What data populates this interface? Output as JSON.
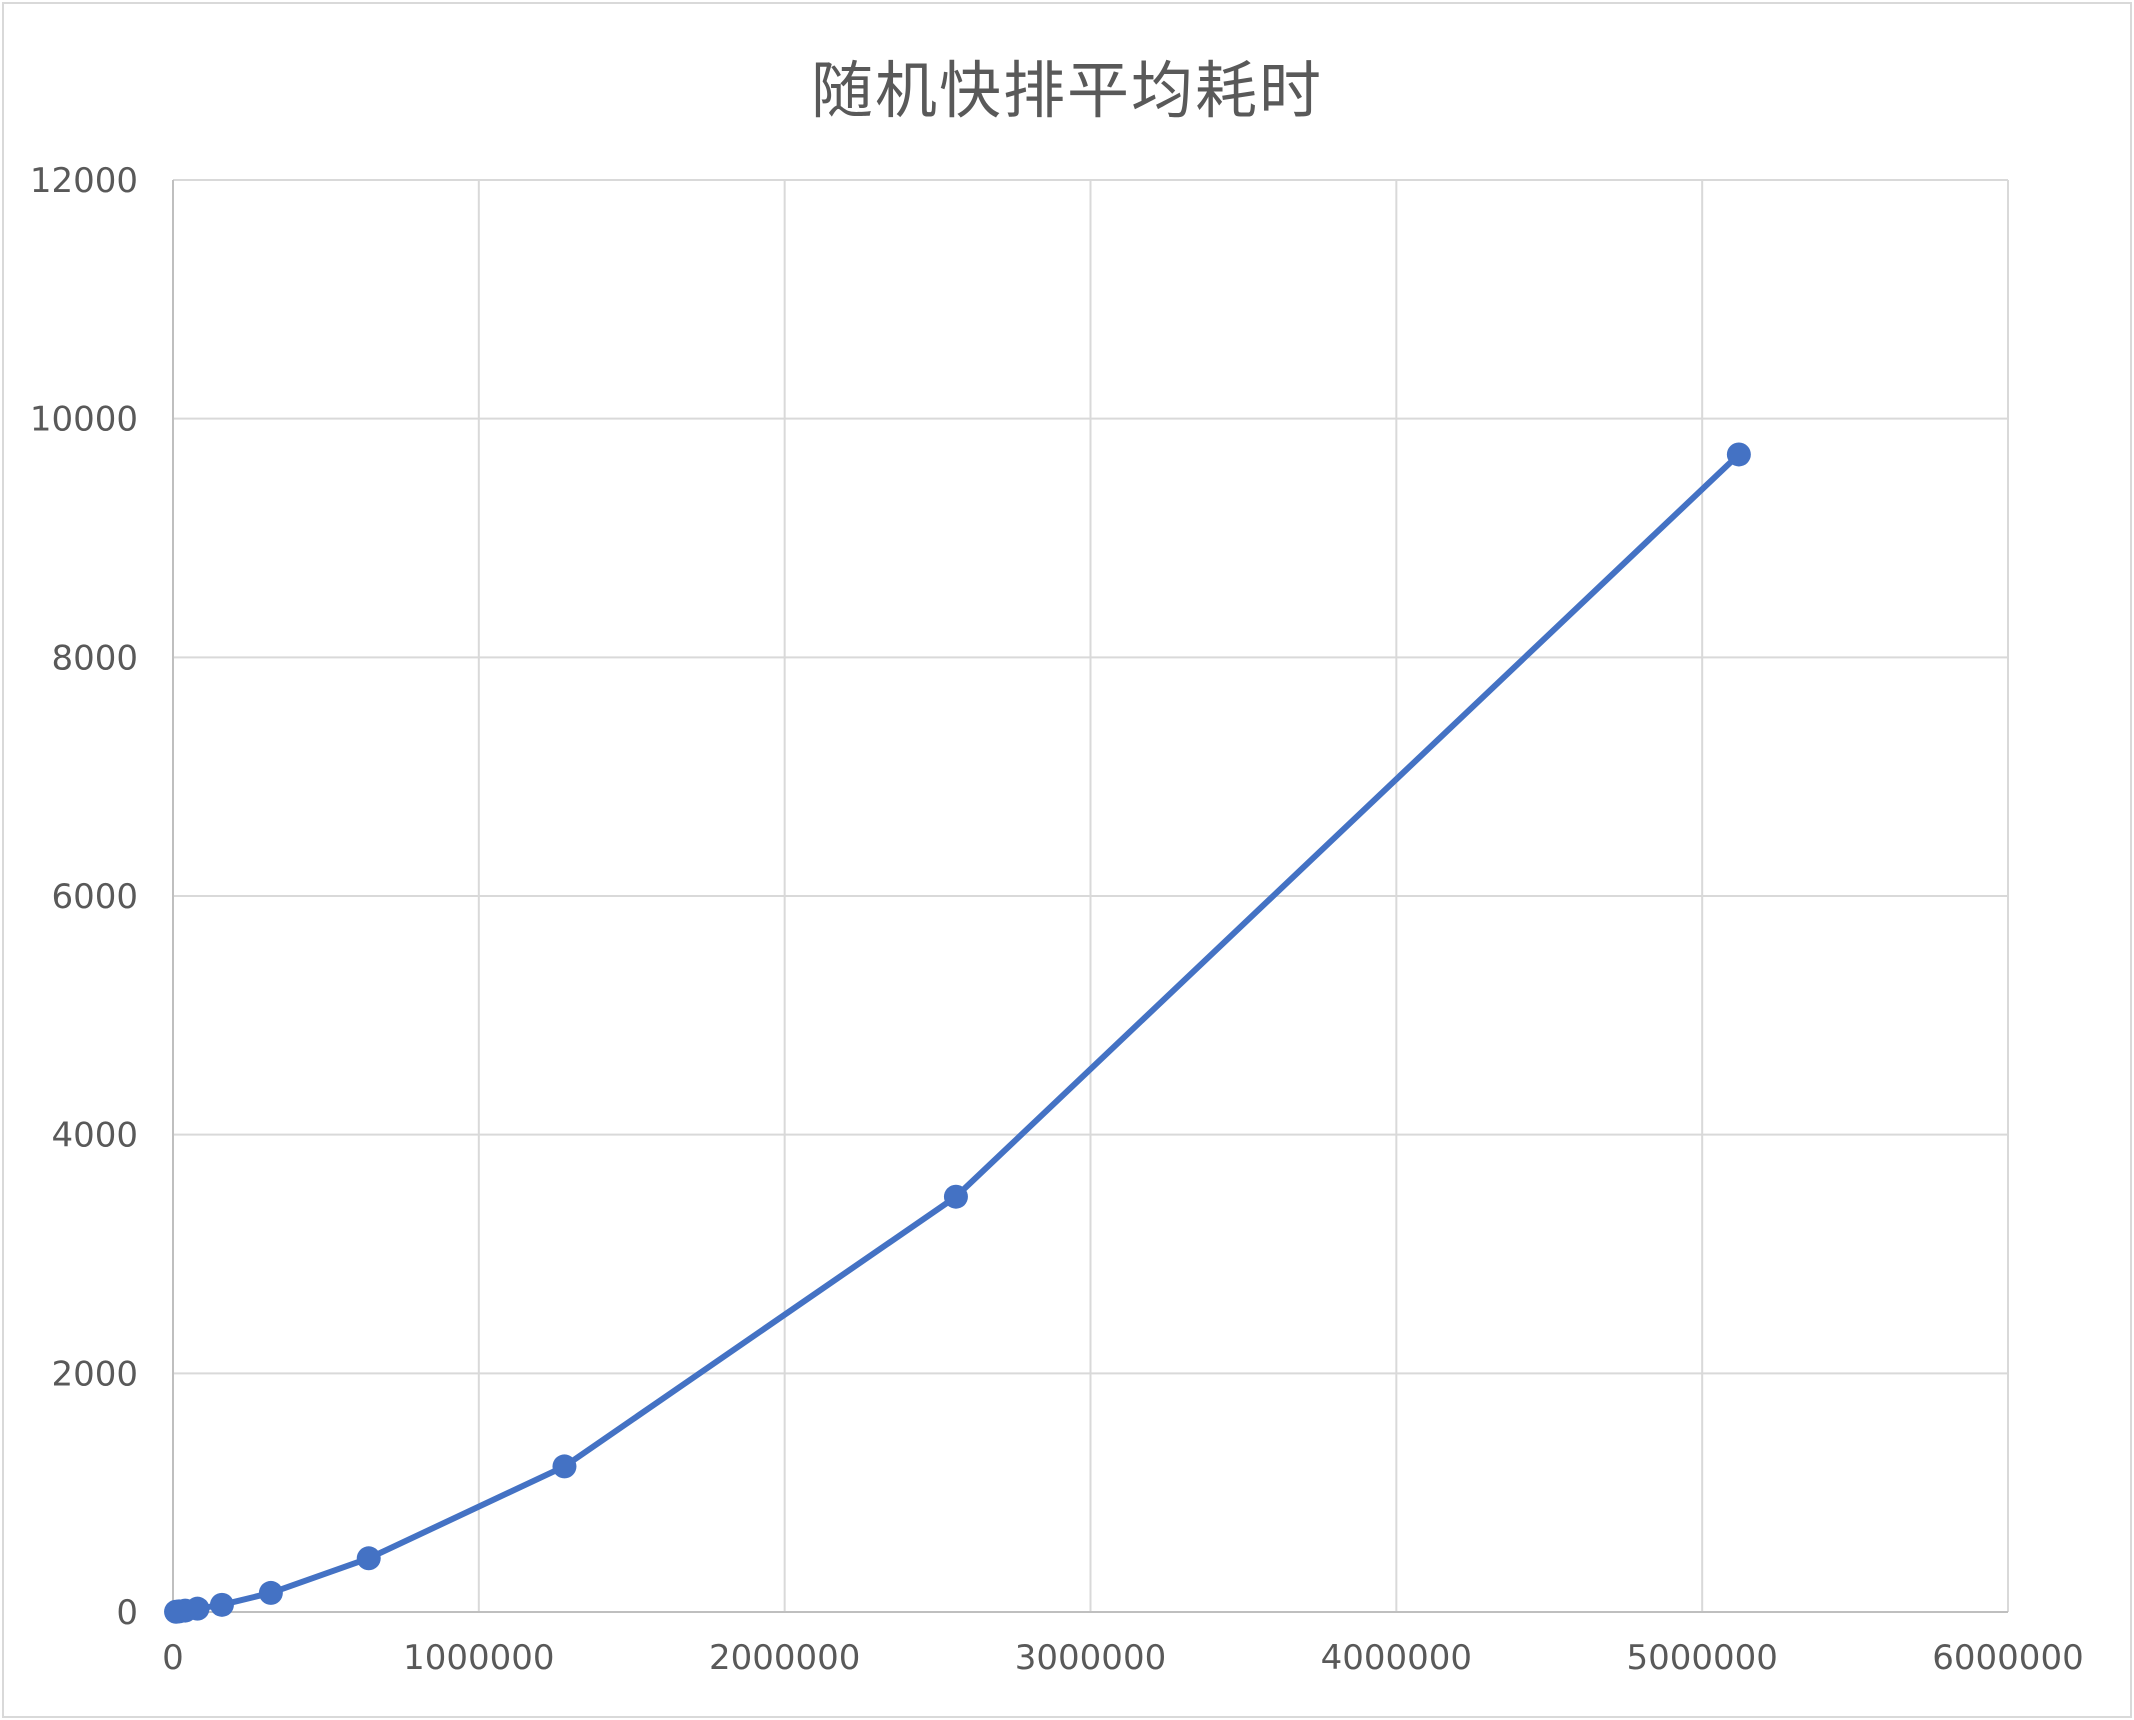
{
  "chart_data": {
    "type": "scatter",
    "title": "随机快排平均耗时",
    "xlabel": "",
    "ylabel": "",
    "xlim": [
      0,
      6000000
    ],
    "ylim": [
      0,
      12000
    ],
    "x_ticks": [
      0,
      1000000,
      2000000,
      3000000,
      4000000,
      5000000,
      6000000
    ],
    "x_tick_labels": [
      "0",
      "1000000",
      "2000000",
      "3000000",
      "4000000",
      "5000000",
      "6000000"
    ],
    "y_ticks": [
      0,
      2000,
      4000,
      6000,
      8000,
      10000,
      12000
    ],
    "y_tick_labels": [
      "0",
      "2000",
      "4000",
      "6000",
      "8000",
      "10000",
      "12000"
    ],
    "grid": true,
    "legend": "none",
    "lines_connected": true,
    "markers": true,
    "series": [
      {
        "color": "#4472c4",
        "x": [
          10000,
          20000,
          40000,
          80000,
          160000,
          320000,
          640000,
          1280000,
          2560000,
          5120000
        ],
        "y": [
          2,
          5,
          12,
          28,
          60,
          160,
          450,
          1220,
          3480,
          9700
        ]
      }
    ]
  }
}
